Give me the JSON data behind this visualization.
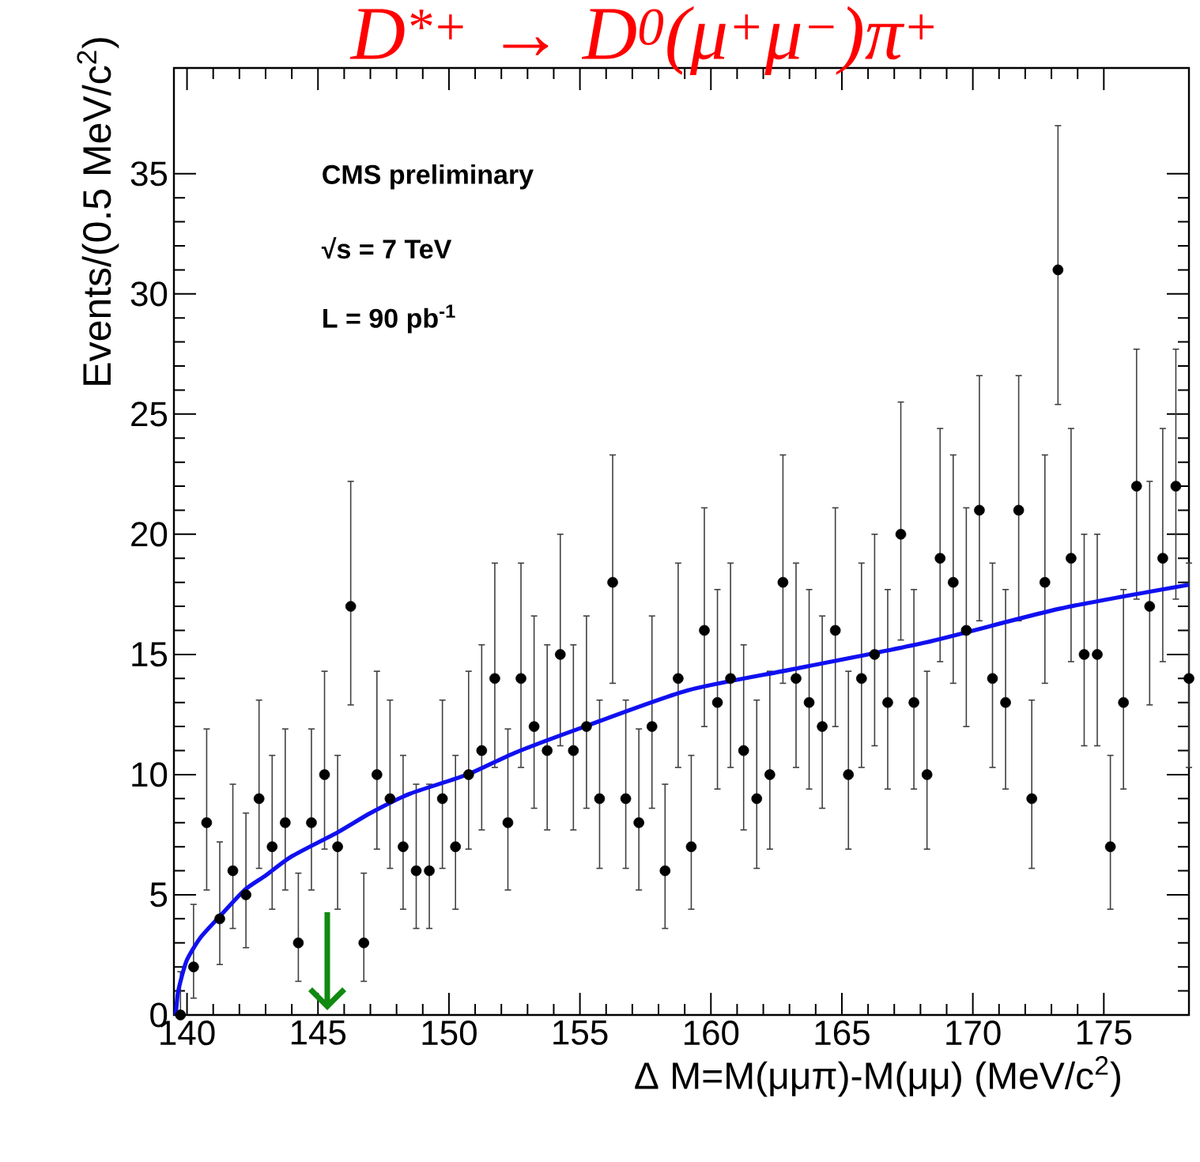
{
  "chart_data": {
    "type": "scatter",
    "title": "D$^{*+}$ → D$^{0}$(μ$^{+}$μ$^{−}$)π$^{+}$",
    "xlabel": "Δ M=M(μμπ)-M(μμ)   (MeV/c$^{2}$)",
    "ylabel": "Events/(0.5 MeV/c$^{2}$)",
    "annotations": [
      "CMS preliminary",
      "√s = 7 TeV",
      "L = 90 pb$^{-1}$"
    ],
    "series": [
      {
        "color": "#000000",
        "marker": "circle",
        "x": [
          139.75,
          140.25,
          140.75,
          141.25,
          141.75,
          142.25,
          142.75,
          143.25,
          143.75,
          144.25,
          144.75,
          145.25,
          145.75,
          146.25,
          146.75,
          147.25,
          147.75,
          148.25,
          148.75,
          149.25,
          149.75,
          150.25,
          150.75,
          151.25,
          151.75,
          152.25,
          152.75,
          153.25,
          153.75,
          154.25,
          154.75,
          155.25,
          155.75,
          156.25,
          156.75,
          157.25,
          157.75,
          158.25,
          158.75,
          159.25,
          159.75,
          160.25,
          160.75,
          161.25,
          161.75,
          162.25,
          162.75,
          163.25,
          163.75,
          164.25,
          164.75,
          165.25,
          165.75,
          166.25,
          166.75,
          167.25,
          167.75,
          168.25,
          168.75,
          169.25,
          169.75,
          170.25,
          170.75,
          171.25,
          171.75,
          172.25,
          172.75,
          173.25,
          173.75,
          174.25,
          174.75,
          175.25,
          175.75,
          176.25,
          176.75,
          177.25,
          177.75,
          178.25
        ],
        "values": [
          0,
          2,
          8,
          4,
          6,
          5,
          9,
          7,
          8,
          3,
          8,
          10,
          7,
          17,
          3,
          10,
          9,
          7,
          6,
          6,
          9,
          7,
          10,
          11,
          14,
          8,
          14,
          12,
          11,
          15,
          11,
          12,
          9,
          18,
          9,
          8,
          12,
          6,
          14,
          7,
          16,
          13,
          14,
          11,
          9,
          10,
          18,
          14,
          13,
          12,
          16,
          10,
          14,
          15,
          13,
          20,
          13,
          10,
          19,
          18,
          16,
          21,
          14,
          13,
          21,
          9,
          18,
          31,
          19,
          15,
          15,
          7,
          13,
          22,
          17,
          19,
          22,
          14
        ],
        "errors": [
          [
            0,
            1.8
          ],
          [
            0.7,
            4.6
          ],
          [
            5.2,
            11.9
          ],
          [
            2.1,
            7.2
          ],
          [
            3.6,
            9.6
          ],
          [
            2.8,
            8.4
          ],
          [
            6.1,
            13.1
          ],
          [
            4.4,
            10.8
          ],
          [
            5.2,
            11.9
          ],
          [
            1.4,
            5.9
          ],
          [
            5.2,
            11.9
          ],
          [
            6.9,
            14.3
          ],
          [
            4.4,
            10.8
          ],
          [
            12.9,
            22.2
          ],
          [
            1.4,
            5.9
          ],
          [
            6.9,
            14.3
          ],
          [
            6.1,
            13.1
          ],
          [
            4.4,
            10.8
          ],
          [
            3.6,
            9.6
          ],
          [
            3.6,
            9.6
          ],
          [
            6.1,
            13.1
          ],
          [
            4.4,
            10.8
          ],
          [
            6.9,
            14.3
          ],
          [
            7.7,
            15.4
          ],
          [
            10.3,
            18.8
          ],
          [
            5.2,
            11.9
          ],
          [
            10.3,
            18.8
          ],
          [
            8.6,
            16.6
          ],
          [
            7.7,
            15.4
          ],
          [
            11.2,
            20.0
          ],
          [
            7.7,
            15.4
          ],
          [
            8.6,
            16.6
          ],
          [
            6.1,
            13.1
          ],
          [
            13.8,
            23.3
          ],
          [
            6.1,
            13.1
          ],
          [
            5.2,
            11.9
          ],
          [
            8.6,
            16.6
          ],
          [
            3.6,
            9.6
          ],
          [
            10.3,
            18.8
          ],
          [
            4.4,
            10.8
          ],
          [
            12.0,
            21.1
          ],
          [
            9.4,
            17.7
          ],
          [
            10.3,
            18.8
          ],
          [
            7.7,
            15.4
          ],
          [
            6.1,
            13.1
          ],
          [
            6.9,
            14.3
          ],
          [
            13.8,
            23.3
          ],
          [
            10.3,
            18.8
          ],
          [
            9.4,
            17.7
          ],
          [
            8.6,
            16.6
          ],
          [
            12.0,
            21.1
          ],
          [
            6.9,
            14.3
          ],
          [
            10.3,
            18.8
          ],
          [
            11.2,
            20.0
          ],
          [
            9.4,
            17.7
          ],
          [
            15.6,
            25.5
          ],
          [
            9.4,
            17.7
          ],
          [
            6.9,
            14.3
          ],
          [
            14.7,
            24.4
          ],
          [
            13.8,
            23.3
          ],
          [
            12.0,
            21.1
          ],
          [
            16.4,
            26.6
          ],
          [
            10.3,
            18.8
          ],
          [
            9.4,
            17.7
          ],
          [
            16.4,
            26.6
          ],
          [
            6.1,
            13.1
          ],
          [
            13.8,
            23.3
          ],
          [
            25.4,
            37.0
          ],
          [
            14.7,
            24.4
          ],
          [
            11.2,
            20.0
          ],
          [
            11.2,
            20.0
          ],
          [
            4.4,
            10.8
          ],
          [
            9.4,
            17.7
          ],
          [
            17.3,
            27.7
          ],
          [
            12.9,
            22.2
          ],
          [
            14.7,
            24.4
          ],
          [
            17.3,
            27.7
          ],
          [
            10.3,
            18.8
          ]
        ]
      },
      {
        "type": "line",
        "color": "#1010f0",
        "marker": "none",
        "x": [
          139.57,
          139.65,
          139.8,
          140.0,
          140.5,
          141.25,
          142.2,
          143.0,
          144.0,
          145.75,
          147.0,
          148.5,
          150.7,
          152.5,
          155.06,
          159.1,
          163.2,
          168.2,
          173.3,
          178.25
        ],
        "values": [
          0,
          0.9,
          1.6,
          2.3,
          3.2,
          4.1,
          5.2,
          5.8,
          6.6,
          7.6,
          8.4,
          9.2,
          10.0,
          10.9,
          11.95,
          13.5,
          14.4,
          15.5,
          16.9,
          17.9
        ]
      }
    ],
    "xlim": [
      139.5,
      178.25
    ],
    "ylim": [
      0,
      39.4
    ],
    "xticks": [
      140,
      145,
      150,
      155,
      160,
      165,
      170,
      175
    ],
    "yticks": [
      0,
      5,
      10,
      15,
      20,
      25,
      30,
      35
    ],
    "grid": false
  }
}
